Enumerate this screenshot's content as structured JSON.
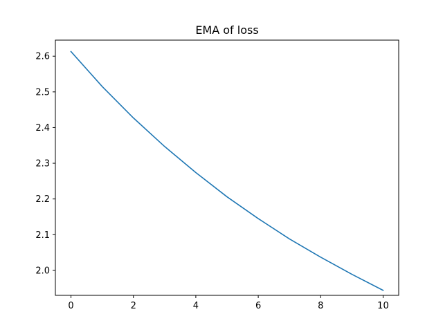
{
  "chart_data": {
    "type": "line",
    "title": "EMA of loss",
    "xlabel": "",
    "ylabel": "",
    "xlim": [
      -0.5,
      10.5
    ],
    "ylim": [
      1.93,
      2.645
    ],
    "xticks": [
      0,
      2,
      4,
      6,
      8,
      10
    ],
    "yticks": [
      2.0,
      2.1,
      2.2,
      2.3,
      2.4,
      2.5,
      2.6
    ],
    "grid": false,
    "series": [
      {
        "color": "#1f77b4",
        "x": [
          0,
          1,
          2,
          3,
          4,
          5,
          6,
          7,
          8,
          9,
          10
        ],
        "y": [
          2.613,
          2.515,
          2.427,
          2.347,
          2.274,
          2.206,
          2.145,
          2.088,
          2.037,
          1.989,
          1.944
        ]
      }
    ]
  }
}
